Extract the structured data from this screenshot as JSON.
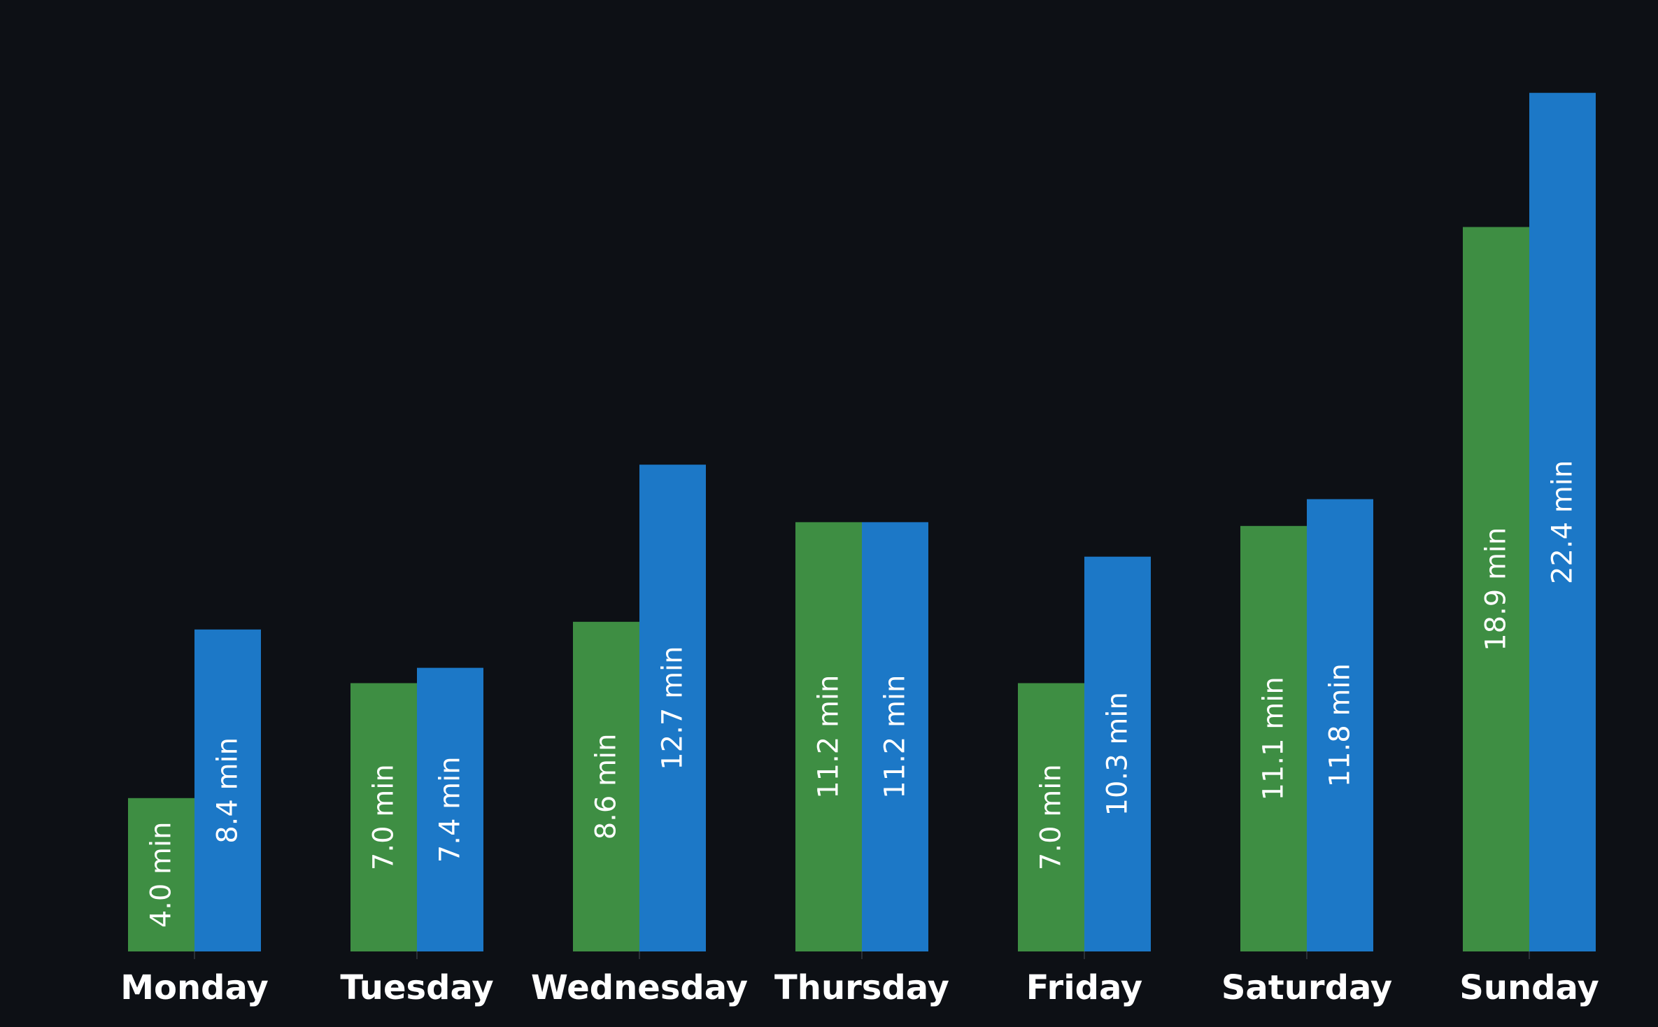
{
  "chart_data": {
    "type": "bar",
    "title": "",
    "xlabel": "",
    "ylabel": "",
    "ylim": [
      0,
      23.8
    ],
    "grid": false,
    "legend": "none",
    "background_color": "#0d1015",
    "categories": [
      "Monday",
      "Tuesday",
      "Wednesday",
      "Thursday",
      "Friday",
      "Saturday",
      "Sunday"
    ],
    "series": [
      {
        "color": "#3e8e43",
        "values": [
          4.0,
          7.0,
          8.6,
          11.2,
          7.0,
          11.1,
          18.9
        ],
        "labels": [
          "4.0 min",
          "7.0 min",
          "8.6 min",
          "11.2 min",
          "7.0 min",
          "11.1 min",
          "18.9 min"
        ]
      },
      {
        "color": "#1c78c7",
        "values": [
          8.4,
          7.4,
          12.7,
          11.2,
          10.3,
          11.8,
          22.4
        ],
        "labels": [
          "8.4 min",
          "7.4 min",
          "12.7 min",
          "11.2 min",
          "10.3 min",
          "11.8 min",
          "22.4 min"
        ]
      }
    ]
  }
}
